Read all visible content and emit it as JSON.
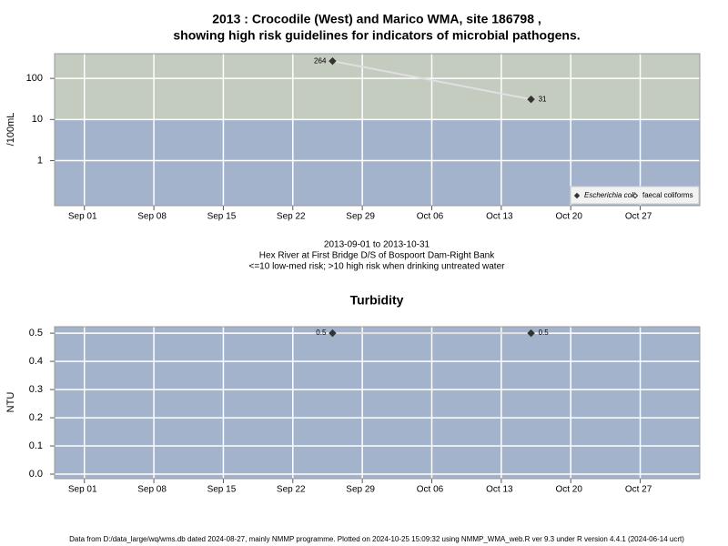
{
  "chart_data": [
    {
      "type": "line",
      "title": "2013 : Crocodile (West) and Marico WMA, site 186798 ,",
      "subtitle": "showing high risk guidelines for indicators of microbial pathogens.",
      "notes": [
        "2013-09-01 to 2013-10-31",
        "Hex River at First Bridge D/S of Bospoort Dam-Right Bank",
        "<=10 low-med risk; >10 high risk when drinking untreated water"
      ],
      "y_label": "/100mL",
      "log_scale": true,
      "ylim": [
        0.08,
        400
      ],
      "yticks": [
        1,
        10,
        100
      ],
      "xlim": [
        "2013-08-29",
        "2013-11-02"
      ],
      "xticks": [
        {
          "value": "2013-09-01",
          "label": "Sep 01"
        },
        {
          "value": "2013-09-08",
          "label": "Sep 08"
        },
        {
          "value": "2013-09-15",
          "label": "Sep 15"
        },
        {
          "value": "2013-09-22",
          "label": "Sep 22"
        },
        {
          "value": "2013-09-29",
          "label": "Sep 29"
        },
        {
          "value": "2013-10-06",
          "label": "Oct 06"
        },
        {
          "value": "2013-10-13",
          "label": "Oct 13"
        },
        {
          "value": "2013-10-20",
          "label": "Oct 20"
        },
        {
          "value": "2013-10-27",
          "label": "Oct 27"
        }
      ],
      "grid": true,
      "band_threshold": 10,
      "band_colors": [
        "#a3b3cc",
        "#c4cbbf"
      ],
      "line_color": "#e0e0e0",
      "legend": "bottom-right",
      "series": [
        {
          "name": "Escherichia coli",
          "marker": "filled",
          "color": "#333333",
          "x": [
            "2013-09-26",
            "2013-10-16"
          ],
          "values": [
            264,
            31
          ]
        },
        {
          "name": "faecal coliforms",
          "marker": "open",
          "color": "#333333",
          "x": [],
          "values": []
        }
      ]
    },
    {
      "type": "line",
      "title": "Turbidity",
      "y_label": "NTU",
      "ylim": [
        -0.016,
        0.523
      ],
      "yticks": [
        {
          "value": 0,
          "label": "0.0"
        },
        0.1,
        0.2,
        0.3,
        0.4,
        0.5
      ],
      "xlim": [
        "2013-08-29",
        "2013-11-02"
      ],
      "xticks": [
        {
          "value": "2013-09-01",
          "label": "Sep 01"
        },
        {
          "value": "2013-09-08",
          "label": "Sep 08"
        },
        {
          "value": "2013-09-15",
          "label": "Sep 15"
        },
        {
          "value": "2013-09-22",
          "label": "Sep 22"
        },
        {
          "value": "2013-09-29",
          "label": "Sep 29"
        },
        {
          "value": "2013-10-06",
          "label": "Oct 06"
        },
        {
          "value": "2013-10-13",
          "label": "Oct 13"
        },
        {
          "value": "2013-10-20",
          "label": "Oct 20"
        },
        {
          "value": "2013-10-27",
          "label": "Oct 27"
        }
      ],
      "grid": true,
      "background": "#a3b3cc",
      "line_color": "#e0e0e0",
      "series": [
        {
          "name": "Turbidity",
          "marker": "filled",
          "color": "#333333",
          "x": [
            "2013-09-26",
            "2013-10-16"
          ],
          "values": [
            0.5,
            0.5
          ],
          "value_labels": [
            "0.5",
            "0.5"
          ]
        }
      ]
    }
  ],
  "footer": "Data from D:/data_large/wq/wms.db dated 2024-08-27, mainly NMMP programme. Plotted on 2024-10-25 15:09:32 using NMMP_WMA_web.R ver 9.3 under R version 4.4.1 (2024-06-14 ucrt)"
}
